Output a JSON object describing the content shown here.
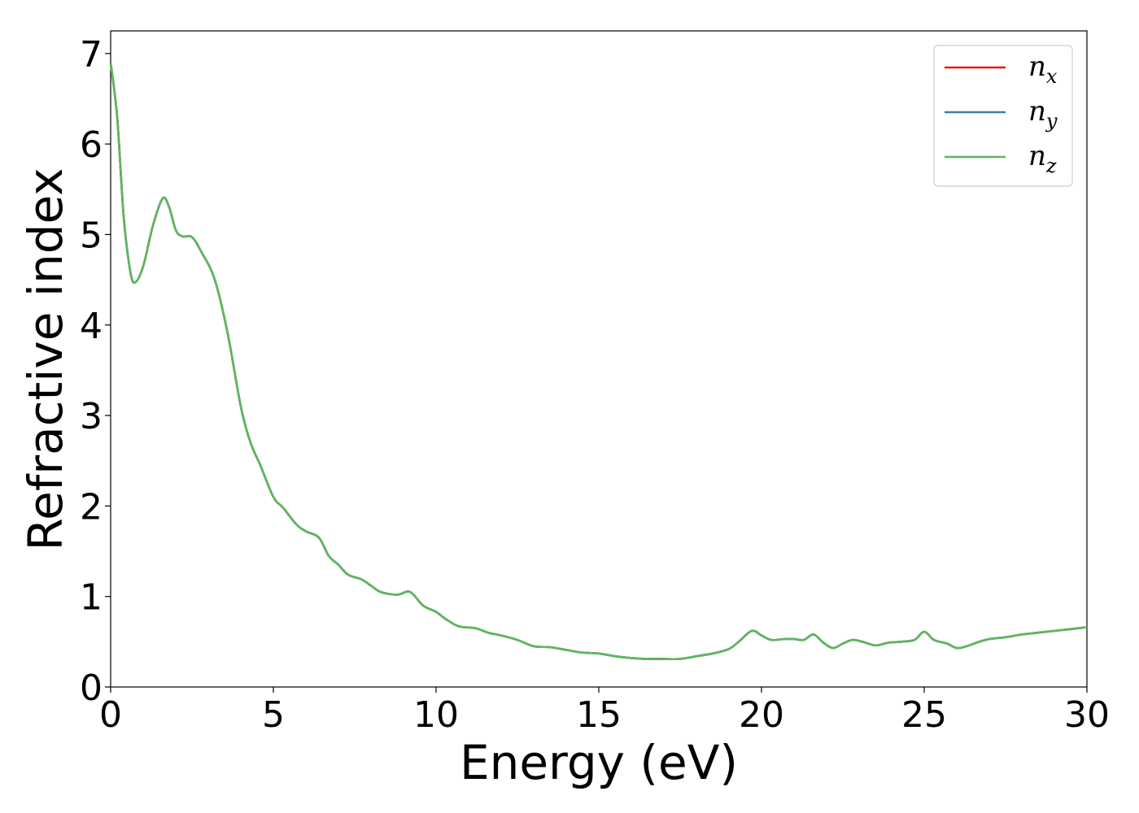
{
  "chart_data": {
    "type": "line",
    "xlabel": "Energy (eV)",
    "ylabel": "Refractive index",
    "xlim": [
      0,
      30
    ],
    "ylim": [
      0,
      7.25
    ],
    "xticks": [
      "0",
      "5",
      "10",
      "15",
      "20",
      "25",
      "30"
    ],
    "yticks": [
      "0",
      "1",
      "2",
      "3",
      "4",
      "5",
      "6",
      "7"
    ],
    "grid": false,
    "legend_position": "top-right",
    "series": [
      {
        "name": "n",
        "subscript": "x",
        "color": "#e41a1c"
      },
      {
        "name": "n",
        "subscript": "y",
        "color": "#377eb8"
      },
      {
        "name": "n",
        "subscript": "z",
        "color": "#5cb85c"
      }
    ],
    "x": [
      0,
      0.2,
      0.4,
      0.6,
      0.75,
      1.0,
      1.3,
      1.6,
      1.8,
      2.0,
      2.2,
      2.5,
      2.8,
      3.2,
      3.6,
      4.0,
      4.3,
      4.6,
      5.0,
      5.3,
      5.7,
      6.0,
      6.4,
      6.7,
      7.0,
      7.3,
      7.7,
      8.0,
      8.3,
      8.8,
      9.2,
      9.6,
      10.0,
      10.3,
      10.7,
      11.2,
      11.6,
      12.0,
      12.5,
      13.0,
      13.5,
      14.0,
      14.5,
      15.0,
      15.5,
      16.0,
      16.5,
      17.0,
      17.5,
      18.0,
      18.5,
      19.0,
      19.3,
      19.7,
      20.0,
      20.3,
      20.7,
      21.0,
      21.3,
      21.6,
      21.9,
      22.2,
      22.5,
      22.8,
      23.1,
      23.5,
      23.9,
      24.3,
      24.7,
      25.0,
      25.3,
      25.7,
      26.0,
      26.3,
      26.7,
      27.0,
      27.5,
      28.0,
      28.5,
      29.0,
      29.5,
      30.0
    ],
    "y": [
      6.9,
      6.3,
      5.2,
      4.6,
      4.47,
      4.65,
      5.1,
      5.4,
      5.3,
      5.05,
      4.98,
      4.97,
      4.8,
      4.5,
      3.9,
      3.1,
      2.7,
      2.45,
      2.1,
      1.98,
      1.8,
      1.72,
      1.65,
      1.45,
      1.35,
      1.24,
      1.19,
      1.12,
      1.05,
      1.02,
      1.05,
      0.9,
      0.83,
      0.75,
      0.67,
      0.65,
      0.6,
      0.57,
      0.52,
      0.45,
      0.44,
      0.41,
      0.38,
      0.37,
      0.34,
      0.32,
      0.31,
      0.31,
      0.31,
      0.34,
      0.37,
      0.42,
      0.5,
      0.62,
      0.57,
      0.52,
      0.53,
      0.53,
      0.52,
      0.58,
      0.49,
      0.43,
      0.48,
      0.52,
      0.5,
      0.46,
      0.49,
      0.5,
      0.52,
      0.61,
      0.52,
      0.48,
      0.43,
      0.45,
      0.5,
      0.53,
      0.55,
      0.58,
      0.6,
      0.62,
      0.64,
      0.66
    ]
  }
}
